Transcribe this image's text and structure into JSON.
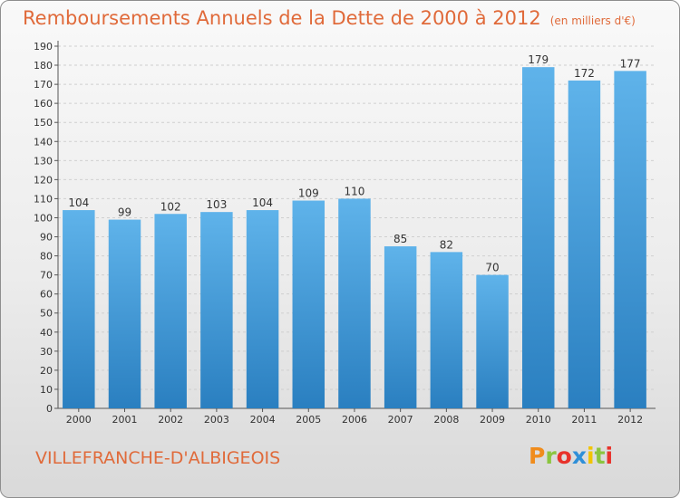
{
  "title": "Remboursements Annuels de la Dette de 2000 à 2012",
  "unit": "(en milliers d'€)",
  "commune": "VILLEFRANCHE-D'ALBIGEOIS",
  "logo": {
    "text": "Proxiti",
    "colors": [
      "#f08c1c",
      "#8bc53f",
      "#e8322b",
      "#2f8fd8",
      "#f2c400",
      "#8bc53f",
      "#e8322b"
    ]
  },
  "colors": {
    "accent": "#e06a3a",
    "bar_top": "#5fb3ea",
    "bar_bottom": "#2a7fc0"
  },
  "chart_data": {
    "type": "bar",
    "categories": [
      "2000",
      "2001",
      "2002",
      "2003",
      "2004",
      "2005",
      "2006",
      "2007",
      "2008",
      "2009",
      "2010",
      "2011",
      "2012"
    ],
    "values": [
      104,
      99,
      102,
      103,
      104,
      109,
      110,
      85,
      82,
      70,
      179,
      172,
      177
    ],
    "ylim": [
      0,
      190
    ],
    "yticks": [
      0,
      10,
      20,
      30,
      40,
      50,
      60,
      70,
      80,
      90,
      100,
      110,
      120,
      130,
      140,
      150,
      160,
      170,
      180,
      190
    ],
    "grid": true
  }
}
